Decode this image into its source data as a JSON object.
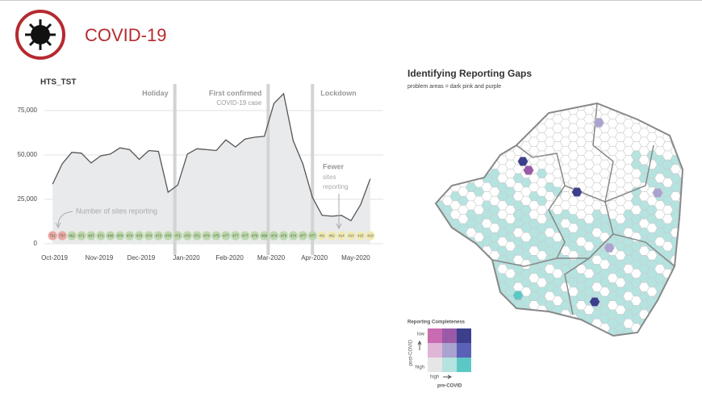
{
  "header": {
    "title": "COVID-19"
  },
  "chart_data": {
    "type": "line",
    "title": "HTS_TST",
    "x": [
      0,
      1,
      2,
      3,
      4,
      5,
      6,
      7,
      8,
      9,
      10,
      11,
      12,
      13,
      14,
      15,
      16,
      17,
      18,
      19,
      20,
      21,
      22,
      23,
      24,
      25,
      26,
      27,
      28,
      29,
      30,
      31,
      32,
      33
    ],
    "xlim": [
      -0.6,
      33.6
    ],
    "xticks": [
      {
        "value": 0.2,
        "label": "Oct-2019"
      },
      {
        "value": 4.85,
        "label": "Nov-2019"
      },
      {
        "value": 9.2,
        "label": "Dec-2019"
      },
      {
        "value": 13.9,
        "label": "Jan-2020"
      },
      {
        "value": 18.4,
        "label": "Feb-2020"
      },
      {
        "value": 22.7,
        "label": "Mar-2020"
      },
      {
        "value": 27.2,
        "label": "Apr-2020"
      },
      {
        "value": 31.5,
        "label": "May-2020"
      }
    ],
    "ylim": [
      0,
      90000
    ],
    "yticks": [
      0,
      {
        "value": 25000,
        "label": "25,000"
      },
      {
        "value": 50000,
        "label": "50,000"
      },
      {
        "value": 75000,
        "label": "75,000"
      }
    ],
    "grid": true,
    "series": [
      {
        "name": "HTS_TST",
        "color": "#555555",
        "fill": "#e9eaec",
        "values": [
          33600,
          45000,
          51500,
          51000,
          45500,
          49500,
          50500,
          54000,
          53000,
          47500,
          52500,
          52000,
          29000,
          33000,
          50500,
          53500,
          53000,
          52500,
          58500,
          54500,
          59000,
          60000,
          60500,
          79000,
          84500,
          58000,
          45000,
          26000,
          16000,
          15500,
          16000,
          13000,
          22000,
          36500
        ]
      },
      {
        "name": "Number of sites reporting",
        "values": [
          751,
          757,
          462,
          471,
          467,
          471,
          469,
          474,
          474,
          470,
          474,
          472,
          470,
          471,
          470,
          471,
          474,
          475,
          477,
          477,
          477,
          476,
          469,
          474,
          476,
          474,
          477,
          477,
          401,
          462,
          414,
          410,
          415,
          419
        ],
        "colors": [
          "#e9aaa3",
          "#e9aaa3",
          "#bcd9ab",
          "#bcd9ab",
          "#bcd9ab",
          "#bcd9ab",
          "#bcd9ab",
          "#bcd9ab",
          "#bcd9ab",
          "#bcd9ab",
          "#bcd9ab",
          "#bcd9ab",
          "#bcd9ab",
          "#bcd9ab",
          "#bcd9ab",
          "#bcd9ab",
          "#bcd9ab",
          "#bcd9ab",
          "#bcd9ab",
          "#bcd9ab",
          "#bcd9ab",
          "#bcd9ab",
          "#bcd9ab",
          "#bcd9ab",
          "#bcd9ab",
          "#bcd9ab",
          "#bcd9ab",
          "#bcd9ab",
          "#f1ebb2",
          "#f1ebb2",
          "#f1ebb2",
          "#f1ebb2",
          "#f1ebb2",
          "#f1ebb2"
        ]
      }
    ],
    "events": [
      {
        "x": 12.7,
        "anchor": "end",
        "lines": [
          "Holiday"
        ]
      },
      {
        "x": 22.4,
        "anchor": "end",
        "lines": [
          "First confirmed",
          "COVID-19 case"
        ]
      },
      {
        "x": 27.0,
        "anchor": "start",
        "lines": [
          "Lockdown"
        ]
      }
    ],
    "annotations": [
      "Number of sites reporting",
      "Fewer",
      "sites",
      "reporting"
    ]
  },
  "map": {
    "title": "Identifying Reporting Gaps",
    "subtitle": "problem areas = dark pink and purple",
    "legend": {
      "title": "Reporting Completeness",
      "y_low": "low",
      "y_high": "high",
      "y_label": "post-COVID",
      "x_high": "high",
      "x_label": "pre-COVID",
      "colors": [
        [
          "#c86bb0",
          "#9a5aa8",
          "#3b3f8c"
        ],
        [
          "#e0b6d6",
          "#a9a3cf",
          "#5a62b8"
        ],
        [
          "#e6e6e6",
          "#b4e3e0",
          "#5cc8c6"
        ]
      ]
    }
  }
}
